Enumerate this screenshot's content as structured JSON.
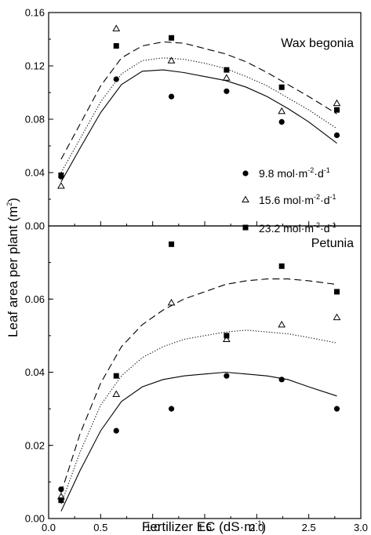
{
  "chart_data": [
    {
      "type": "scatter",
      "title": "Wax begonia",
      "xlabel": "Fertilizer EC (dS·m⁻¹)",
      "ylabel": "Leaf area per plant (m²)",
      "xlim": [
        0.0,
        3.0
      ],
      "ylim": [
        0.0,
        0.16
      ],
      "yticks": [
        "0.00",
        "0.04",
        "0.08",
        "0.12",
        "0.16"
      ],
      "legend_position": "right",
      "series": [
        {
          "name": "9.8 mol·m⁻²·d⁻¹",
          "marker": "circle",
          "line": "solid",
          "points": [
            [
              0.12,
              0.037
            ],
            [
              0.65,
              0.11
            ],
            [
              1.18,
              0.097
            ],
            [
              1.71,
              0.101
            ],
            [
              2.24,
              0.078
            ],
            [
              2.77,
              0.068
            ]
          ],
          "fit": [
            [
              0.12,
              0.033
            ],
            [
              0.3,
              0.058
            ],
            [
              0.5,
              0.085
            ],
            [
              0.7,
              0.106
            ],
            [
              0.9,
              0.116
            ],
            [
              1.1,
              0.117
            ],
            [
              1.3,
              0.115
            ],
            [
              1.5,
              0.112
            ],
            [
              1.7,
              0.109
            ],
            [
              1.9,
              0.104
            ],
            [
              2.1,
              0.097
            ],
            [
              2.3,
              0.088
            ],
            [
              2.5,
              0.078
            ],
            [
              2.77,
              0.062
            ]
          ]
        },
        {
          "name": "15.6 mol·m⁻²·d⁻¹",
          "marker": "triangle-open",
          "line": "dotted",
          "points": [
            [
              0.12,
              0.03
            ],
            [
              0.65,
              0.148
            ],
            [
              1.18,
              0.124
            ],
            [
              1.71,
              0.111
            ],
            [
              2.24,
              0.086
            ],
            [
              2.77,
              0.092
            ]
          ],
          "fit": [
            [
              0.12,
              0.04
            ],
            [
              0.3,
              0.065
            ],
            [
              0.5,
              0.093
            ],
            [
              0.7,
              0.114
            ],
            [
              0.9,
              0.124
            ],
            [
              1.1,
              0.126
            ],
            [
              1.3,
              0.125
            ],
            [
              1.5,
              0.122
            ],
            [
              1.7,
              0.118
            ],
            [
              1.9,
              0.112
            ],
            [
              2.1,
              0.105
            ],
            [
              2.3,
              0.096
            ],
            [
              2.5,
              0.087
            ],
            [
              2.77,
              0.073
            ]
          ]
        },
        {
          "name": "23.2 mol·m⁻²·d⁻¹",
          "marker": "square",
          "line": "dashed",
          "points": [
            [
              0.12,
              0.038
            ],
            [
              0.65,
              0.135
            ],
            [
              1.18,
              0.141
            ],
            [
              1.71,
              0.117
            ],
            [
              2.24,
              0.104
            ],
            [
              2.77,
              0.087
            ]
          ],
          "fit": [
            [
              0.12,
              0.05
            ],
            [
              0.3,
              0.076
            ],
            [
              0.5,
              0.105
            ],
            [
              0.7,
              0.126
            ],
            [
              0.9,
              0.135
            ],
            [
              1.1,
              0.138
            ],
            [
              1.3,
              0.137
            ],
            [
              1.5,
              0.133
            ],
            [
              1.7,
              0.129
            ],
            [
              1.9,
              0.123
            ],
            [
              2.1,
              0.115
            ],
            [
              2.3,
              0.106
            ],
            [
              2.5,
              0.097
            ],
            [
              2.77,
              0.084
            ]
          ]
        }
      ]
    },
    {
      "type": "scatter",
      "title": "Petunia",
      "xlabel": "Fertilizer EC (dS·m⁻¹)",
      "ylabel": "Leaf area per plant (m²)",
      "xlim": [
        0.0,
        3.0
      ],
      "ylim": [
        0.0,
        0.08
      ],
      "xticks": [
        "0.0",
        "0.5",
        "1.0",
        "1.5",
        "2.0",
        "2.5",
        "3.0"
      ],
      "yticks": [
        "0.00",
        "0.02",
        "0.04",
        "0.06"
      ],
      "series": [
        {
          "name": "9.8 mol·m⁻²·d⁻¹",
          "marker": "circle",
          "line": "solid",
          "points": [
            [
              0.12,
              0.008
            ],
            [
              0.65,
              0.024
            ],
            [
              1.18,
              0.03
            ],
            [
              1.71,
              0.039
            ],
            [
              2.24,
              0.038
            ],
            [
              2.77,
              0.03
            ]
          ],
          "fit": [
            [
              0.12,
              0.002
            ],
            [
              0.3,
              0.013
            ],
            [
              0.5,
              0.024
            ],
            [
              0.7,
              0.032
            ],
            [
              0.9,
              0.036
            ],
            [
              1.1,
              0.038
            ],
            [
              1.3,
              0.039
            ],
            [
              1.5,
              0.0395
            ],
            [
              1.7,
              0.04
            ],
            [
              1.9,
              0.0395
            ],
            [
              2.1,
              0.039
            ],
            [
              2.3,
              0.038
            ],
            [
              2.5,
              0.036
            ],
            [
              2.77,
              0.0335
            ]
          ]
        },
        {
          "name": "15.6 mol·m⁻²·d⁻¹",
          "marker": "triangle-open",
          "line": "dotted",
          "points": [
            [
              0.12,
              0.006
            ],
            [
              0.65,
              0.034
            ],
            [
              1.18,
              0.059
            ],
            [
              1.71,
              0.049
            ],
            [
              2.24,
              0.053
            ],
            [
              2.77,
              0.055
            ]
          ],
          "fit": [
            [
              0.12,
              0.004
            ],
            [
              0.3,
              0.018
            ],
            [
              0.5,
              0.031
            ],
            [
              0.7,
              0.039
            ],
            [
              0.9,
              0.044
            ],
            [
              1.1,
              0.047
            ],
            [
              1.3,
              0.049
            ],
            [
              1.5,
              0.05
            ],
            [
              1.7,
              0.051
            ],
            [
              1.9,
              0.0515
            ],
            [
              2.1,
              0.051
            ],
            [
              2.3,
              0.0505
            ],
            [
              2.5,
              0.0495
            ],
            [
              2.77,
              0.048
            ]
          ]
        },
        {
          "name": "23.2 mol·m⁻²·d⁻¹",
          "marker": "square",
          "line": "dashed",
          "points": [
            [
              0.12,
              0.005
            ],
            [
              0.65,
              0.039
            ],
            [
              1.18,
              0.075
            ],
            [
              1.71,
              0.05
            ],
            [
              2.24,
              0.069
            ],
            [
              2.77,
              0.062
            ]
          ],
          "fit": [
            [
              0.12,
              0.007
            ],
            [
              0.3,
              0.023
            ],
            [
              0.5,
              0.037
            ],
            [
              0.7,
              0.047
            ],
            [
              0.9,
              0.053
            ],
            [
              1.1,
              0.057
            ],
            [
              1.3,
              0.06
            ],
            [
              1.5,
              0.062
            ],
            [
              1.7,
              0.064
            ],
            [
              1.9,
              0.065
            ],
            [
              2.1,
              0.0655
            ],
            [
              2.3,
              0.0655
            ],
            [
              2.5,
              0.065
            ],
            [
              2.77,
              0.064
            ]
          ]
        }
      ]
    }
  ],
  "legend": {
    "entries": [
      {
        "value": "9.8 mol",
        "dot": "·",
        "unit_a": "m",
        "exp_a": "-2",
        "unit_b": "d",
        "exp_b": "-1"
      },
      {
        "value": "15.6 mol",
        "dot": "·",
        "unit_a": "m",
        "exp_a": "-2",
        "unit_b": "d",
        "exp_b": "-1"
      },
      {
        "value": "23.2 mol",
        "dot": "·",
        "unit_a": "m",
        "exp_a": "-2",
        "unit_b": "d",
        "exp_b": "-1"
      }
    ]
  },
  "axes": {
    "xlabel_main": "Fertilizer EC (dS",
    "xlabel_dot": "·",
    "xlabel_unit": "m",
    "xlabel_exp": "-1",
    "xlabel_close": ")",
    "ylabel_main": "Leaf area per plant (m",
    "ylabel_exp": "2",
    "ylabel_close": ")"
  }
}
